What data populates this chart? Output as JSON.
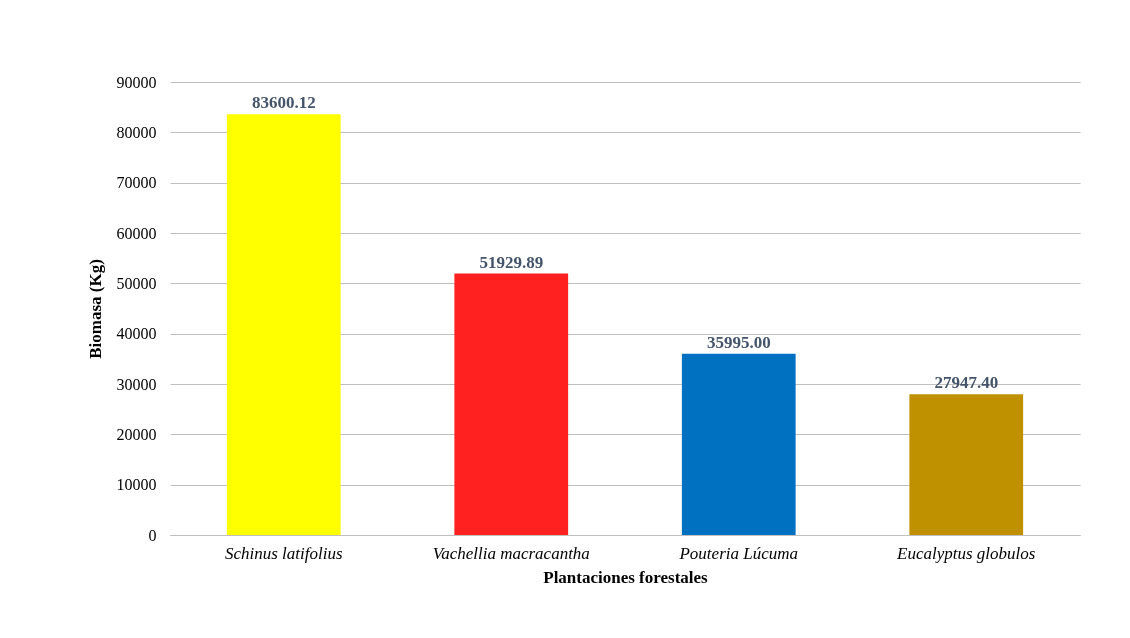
{
  "chart_data": {
    "type": "bar",
    "xlabel": "Plantaciones forestales",
    "ylabel": "Biomasa (Kg)",
    "categories": [
      "Schinus latifolius",
      "Vachellia macracantha",
      "Pouteria Lúcuma",
      "Eucalyptus globulos"
    ],
    "values": [
      83600.12,
      51929.89,
      35995,
      27947.4
    ],
    "value_labels": [
      "83600.12",
      "51929.89",
      "35995.00",
      "27947.40"
    ],
    "colors": [
      "#ffff00",
      "#ff2020",
      "#0070c0",
      "#bf9000"
    ],
    "ylim": [
      0,
      90000
    ],
    "yticks": [
      0,
      10000,
      20000,
      30000,
      40000,
      50000,
      60000,
      70000,
      80000,
      90000
    ],
    "grid": "y"
  }
}
